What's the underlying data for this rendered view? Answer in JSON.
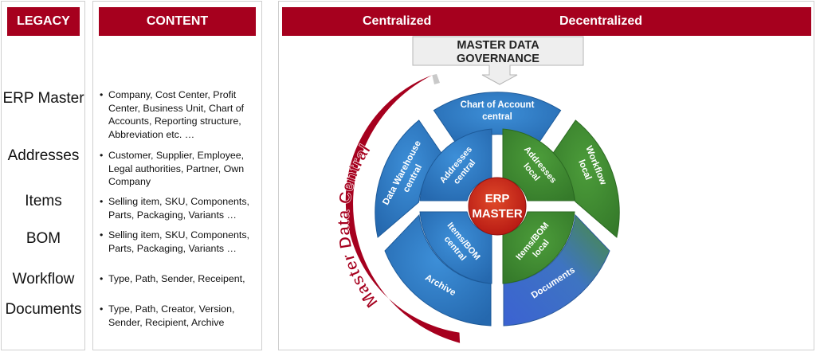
{
  "legacy": {
    "header": "LEGACY",
    "items": [
      "ERP Master",
      "Addresses",
      "Items",
      "BOM",
      "Workflow",
      "Documents"
    ]
  },
  "content": {
    "header": "CONTENT",
    "items": [
      [
        "Company, Cost Center, Profit",
        "Center, Business Unit, Chart of",
        "Accounts, Reporting structure,",
        "Abbreviation etc. …"
      ],
      [
        "Customer, Supplier, Employee,",
        "Legal authorities, Partner, Own",
        "Company"
      ],
      [
        "Selling item, SKU, Components,",
        "Parts,  Packaging, Variants …"
      ],
      [
        "Selling item, SKU, Components,",
        "Parts,  Packaging, Variants …"
      ],
      [
        "Type, Path, Sender, Receipent,"
      ],
      [
        "Type, Path, Creator, Version,",
        "Sender, Recipient, Archive"
      ]
    ]
  },
  "diagram": {
    "header_left": "Centralized",
    "header_right": "Decentralized",
    "callout": [
      "MASTER DATA",
      "GOVERNANCE"
    ],
    "arc_label": "Master Data Central",
    "center": [
      "ERP",
      "MASTER"
    ],
    "outer": {
      "chart_of_account": [
        "Chart of Account",
        "central"
      ],
      "data_warehouse": [
        "Data Warehouse",
        "central"
      ],
      "workflow": [
        "Workflow",
        "local"
      ],
      "archive": "Archive",
      "documents": "Documents"
    },
    "inner": {
      "addresses_central": [
        "Addresses",
        "central"
      ],
      "addresses_local": [
        "Addresses",
        "local"
      ],
      "items_bom_central": [
        "Items/BOM",
        "central"
      ],
      "items_bom_local": [
        "Items/BOM",
        "local"
      ]
    },
    "colors": {
      "header_red": "#a6001e",
      "blue": "#2f7ac4",
      "green": "#3f8b32",
      "center_red": "#c8201e",
      "arc_red": "#a6001e",
      "documents_blue": "#3b62c9"
    }
  }
}
